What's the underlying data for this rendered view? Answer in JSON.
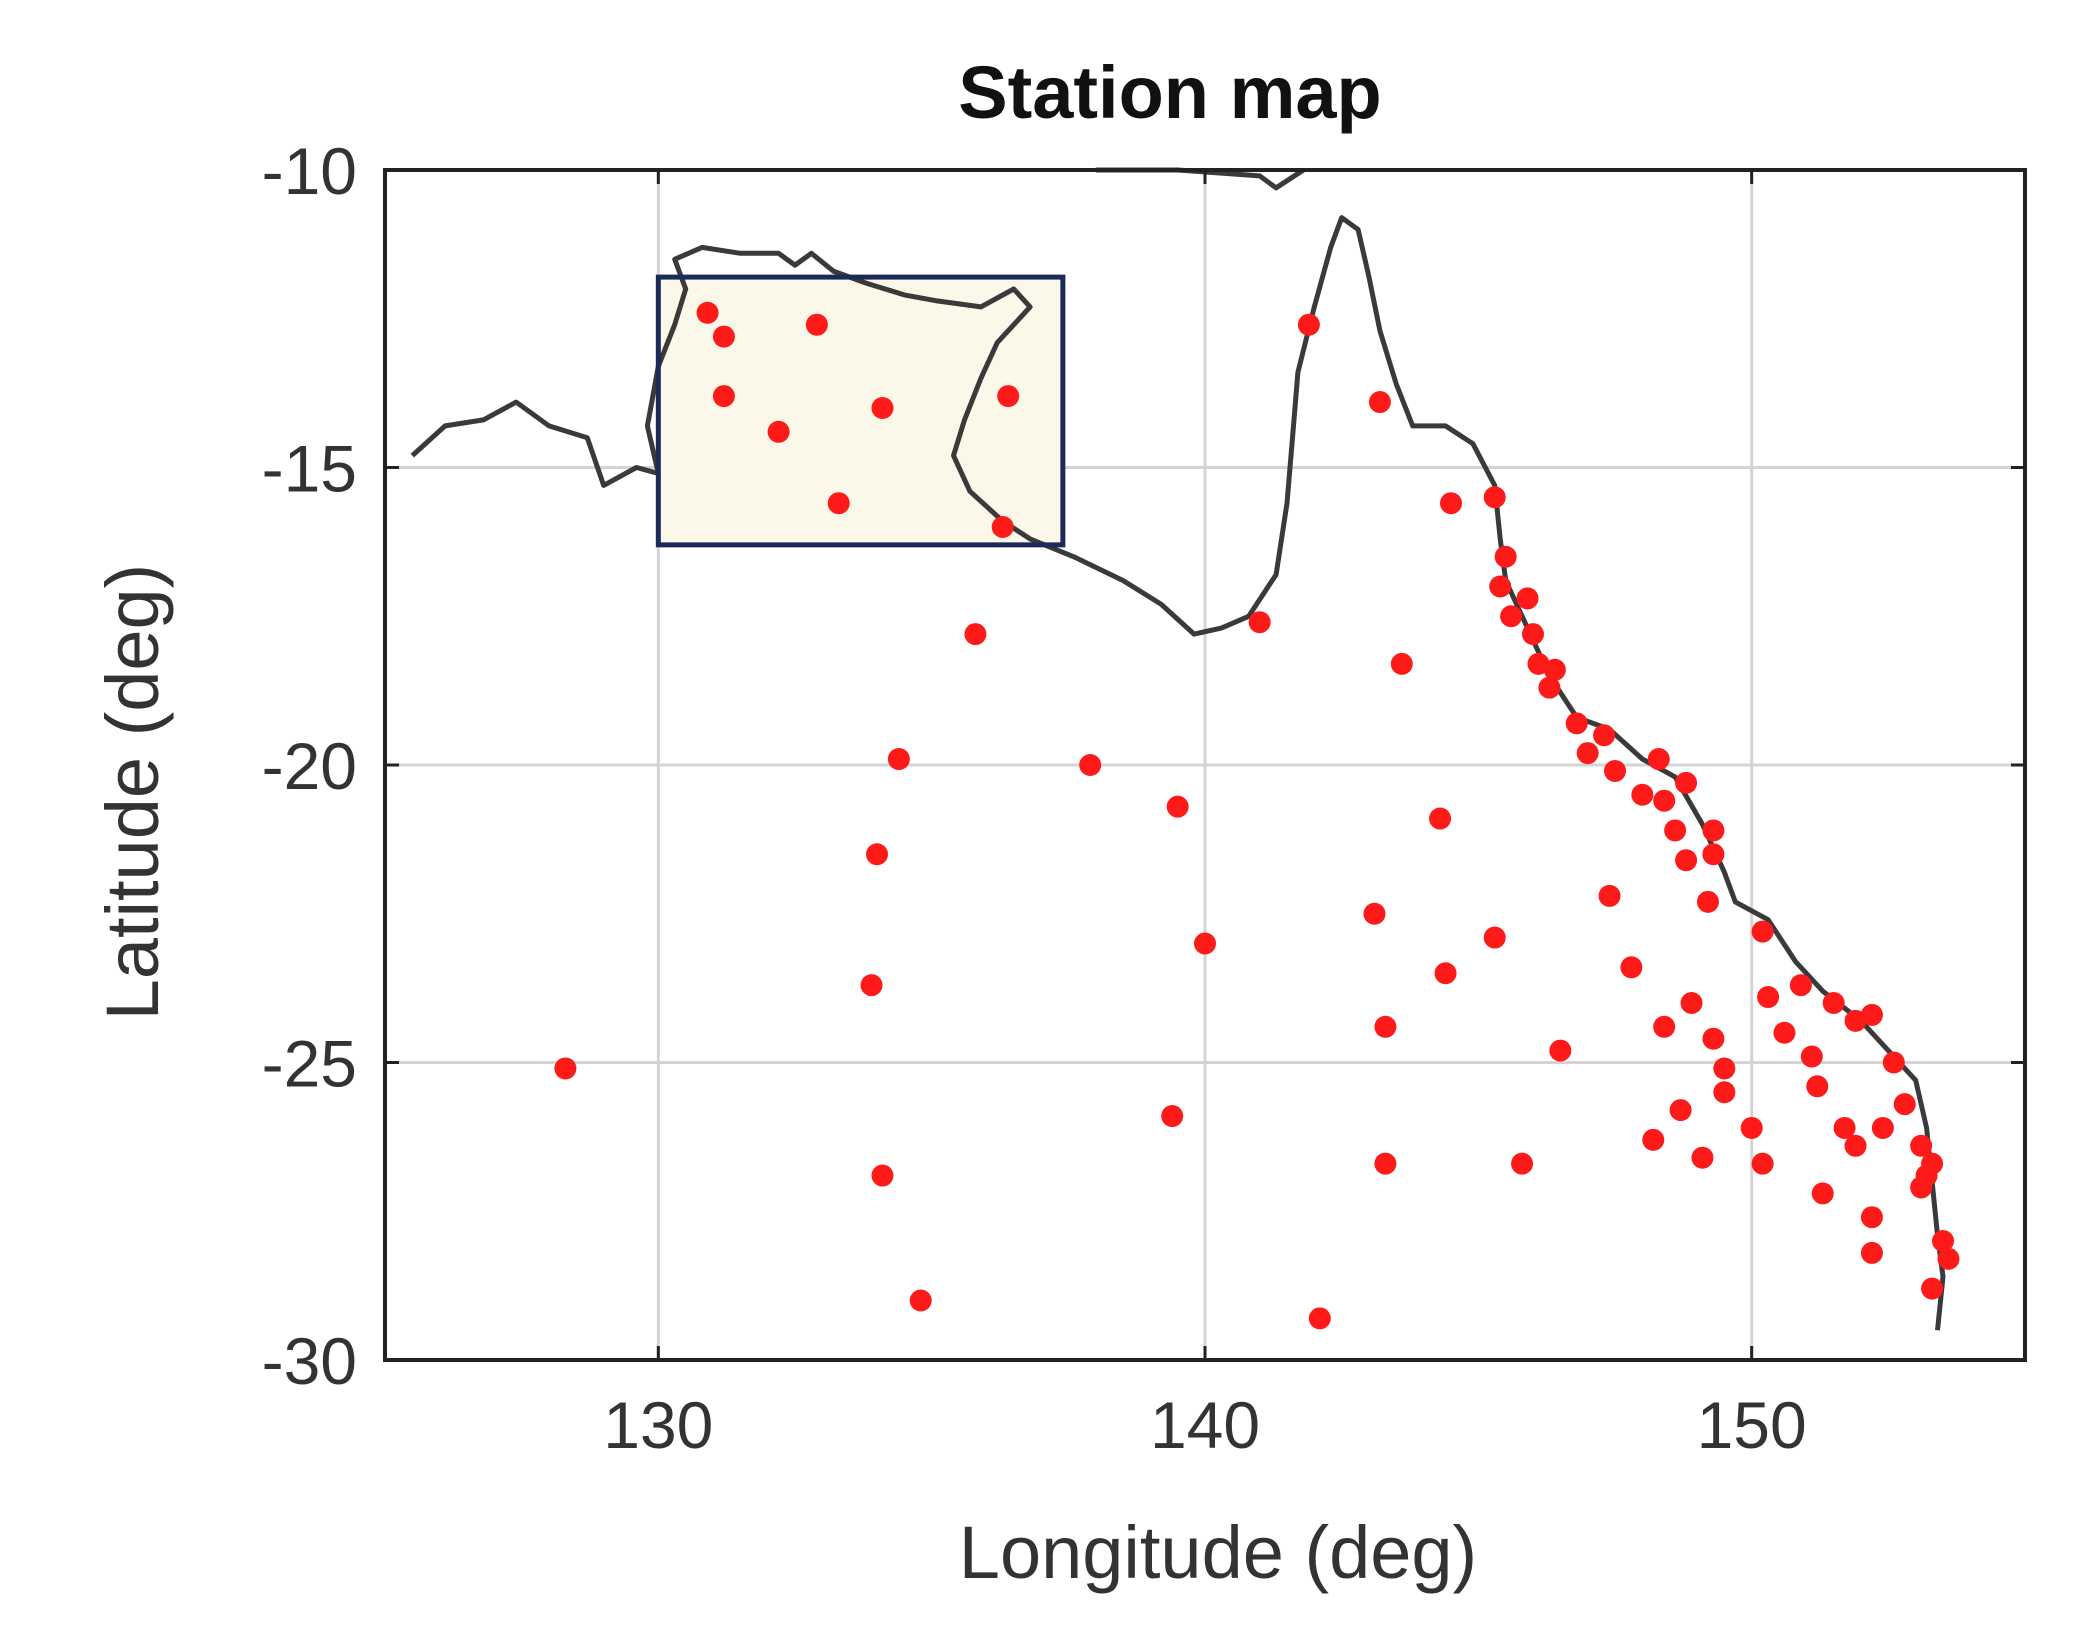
{
  "chart_data": {
    "type": "scatter",
    "title": "Station map",
    "xlabel": "Longitude (deg)",
    "ylabel": "Latitude (deg)",
    "xlim": [
      125,
      155
    ],
    "ylim": [
      -30,
      -10
    ],
    "xticks": [
      130,
      140,
      150
    ],
    "yticks": [
      -10,
      -15,
      -20,
      -25,
      -30
    ],
    "grid": true,
    "colors": {
      "station": "#ff1a1a",
      "coastline": "#3a3a3a",
      "highlight_fill": "#fbf7e9",
      "highlight_border": "#1c2a5a"
    },
    "highlight_region": {
      "lon": [
        130,
        137.4
      ],
      "lat": [
        -16.3,
        -11.8
      ]
    },
    "coastline": [
      [
        125.5,
        -14.8
      ],
      [
        126.1,
        -14.3
      ],
      [
        126.8,
        -14.2
      ],
      [
        127.4,
        -13.9
      ],
      [
        128.0,
        -14.3
      ],
      [
        128.7,
        -14.5
      ],
      [
        129.0,
        -15.3
      ],
      [
        129.6,
        -15.0
      ],
      [
        130.0,
        -15.1
      ],
      [
        129.8,
        -14.3
      ],
      [
        130.0,
        -13.3
      ],
      [
        130.3,
        -12.6
      ],
      [
        130.5,
        -12.0
      ],
      [
        130.3,
        -11.5
      ],
      [
        130.8,
        -11.3
      ],
      [
        131.5,
        -11.4
      ],
      [
        132.2,
        -11.4
      ],
      [
        132.5,
        -11.6
      ],
      [
        132.8,
        -11.4
      ],
      [
        133.2,
        -11.7
      ],
      [
        133.8,
        -11.9
      ],
      [
        134.5,
        -12.1
      ],
      [
        135.1,
        -12.2
      ],
      [
        135.9,
        -12.3
      ],
      [
        136.5,
        -12.0
      ],
      [
        136.8,
        -12.3
      ],
      [
        136.2,
        -12.9
      ],
      [
        135.9,
        -13.5
      ],
      [
        135.6,
        -14.2
      ],
      [
        135.4,
        -14.8
      ],
      [
        135.7,
        -15.4
      ],
      [
        136.3,
        -15.9
      ],
      [
        136.8,
        -16.2
      ],
      [
        137.6,
        -16.5
      ],
      [
        138.5,
        -16.9
      ],
      [
        139.2,
        -17.3
      ],
      [
        139.8,
        -17.8
      ],
      [
        140.3,
        -17.7
      ],
      [
        140.8,
        -17.5
      ],
      [
        141.3,
        -16.8
      ],
      [
        141.5,
        -15.6
      ],
      [
        141.6,
        -14.5
      ],
      [
        141.7,
        -13.4
      ],
      [
        142.0,
        -12.3
      ],
      [
        142.3,
        -11.3
      ],
      [
        142.5,
        -10.8
      ],
      [
        142.8,
        -11.0
      ],
      [
        143.0,
        -11.8
      ],
      [
        143.2,
        -12.7
      ],
      [
        143.5,
        -13.6
      ],
      [
        143.8,
        -14.3
      ],
      [
        144.4,
        -14.3
      ],
      [
        144.9,
        -14.6
      ],
      [
        145.3,
        -15.3
      ],
      [
        145.4,
        -16.2
      ],
      [
        145.5,
        -16.9
      ],
      [
        146.0,
        -17.9
      ],
      [
        146.3,
        -18.5
      ],
      [
        146.8,
        -19.2
      ],
      [
        147.4,
        -19.4
      ],
      [
        148.0,
        -19.9
      ],
      [
        148.6,
        -20.2
      ],
      [
        149.1,
        -21.0
      ],
      [
        149.5,
        -21.8
      ],
      [
        149.7,
        -22.3
      ],
      [
        150.3,
        -22.6
      ],
      [
        150.8,
        -23.3
      ],
      [
        151.3,
        -23.8
      ],
      [
        152.0,
        -24.3
      ],
      [
        152.5,
        -24.8
      ],
      [
        153.0,
        -25.3
      ],
      [
        153.2,
        -26.1
      ],
      [
        153.3,
        -27.0
      ],
      [
        153.4,
        -27.9
      ],
      [
        153.5,
        -28.6
      ],
      [
        153.4,
        -29.5
      ]
    ],
    "coastline_islands": [
      [
        [
          138.0,
          -10.0
        ],
        [
          139.5,
          -10.0
        ],
        [
          141.0,
          -10.1
        ],
        [
          141.3,
          -10.3
        ],
        [
          141.8,
          -10.0
        ]
      ]
    ],
    "stations": [
      [
        128.3,
        -25.1
      ],
      [
        130.9,
        -12.4
      ],
      [
        131.2,
        -12.8
      ],
      [
        131.2,
        -13.8
      ],
      [
        132.2,
        -14.4
      ],
      [
        132.9,
        -12.6
      ],
      [
        134.1,
        -14.0
      ],
      [
        133.3,
        -15.6
      ],
      [
        136.4,
        -13.8
      ],
      [
        136.3,
        -16.0
      ],
      [
        135.8,
        -17.8
      ],
      [
        134.4,
        -19.9
      ],
      [
        134.0,
        -21.5
      ],
      [
        133.9,
        -23.7
      ],
      [
        134.1,
        -26.9
      ],
      [
        134.8,
        -29.0
      ],
      [
        137.9,
        -20.0
      ],
      [
        139.5,
        -20.7
      ],
      [
        140.0,
        -23.0
      ],
      [
        139.4,
        -25.9
      ],
      [
        141.0,
        -17.6
      ],
      [
        141.9,
        -12.6
      ],
      [
        142.1,
        -29.3
      ],
      [
        143.2,
        -13.9
      ],
      [
        143.6,
        -18.3
      ],
      [
        143.1,
        -22.5
      ],
      [
        143.3,
        -24.4
      ],
      [
        143.3,
        -26.7
      ],
      [
        144.3,
        -20.9
      ],
      [
        144.4,
        -23.5
      ],
      [
        144.5,
        -15.6
      ],
      [
        145.3,
        -15.5
      ],
      [
        145.5,
        -16.5
      ],
      [
        145.4,
        -17.0
      ],
      [
        145.6,
        -17.5
      ],
      [
        145.9,
        -17.2
      ],
      [
        146.0,
        -17.8
      ],
      [
        146.1,
        -18.3
      ],
      [
        146.3,
        -18.7
      ],
      [
        146.4,
        -18.4
      ],
      [
        145.3,
        -22.9
      ],
      [
        145.8,
        -26.7
      ],
      [
        146.5,
        -24.8
      ],
      [
        146.8,
        -19.3
      ],
      [
        147.0,
        -19.8
      ],
      [
        147.3,
        -19.5
      ],
      [
        147.5,
        -20.1
      ],
      [
        147.4,
        -22.2
      ],
      [
        147.8,
        -23.4
      ],
      [
        148.0,
        -20.5
      ],
      [
        148.3,
        -19.9
      ],
      [
        148.4,
        -20.6
      ],
      [
        148.6,
        -21.1
      ],
      [
        148.8,
        -20.3
      ],
      [
        148.8,
        -21.6
      ],
      [
        149.2,
        -22.3
      ],
      [
        149.3,
        -21.5
      ],
      [
        149.3,
        -21.1
      ],
      [
        148.2,
        -26.3
      ],
      [
        148.4,
        -24.4
      ],
      [
        148.7,
        -25.8
      ],
      [
        148.9,
        -24.0
      ],
      [
        149.1,
        -26.6
      ],
      [
        149.3,
        -24.6
      ],
      [
        149.5,
        -25.1
      ],
      [
        149.5,
        -25.5
      ],
      [
        150.0,
        -26.1
      ],
      [
        150.2,
        -26.7
      ],
      [
        150.2,
        -22.8
      ],
      [
        150.3,
        -23.9
      ],
      [
        150.6,
        -24.5
      ],
      [
        150.9,
        -23.7
      ],
      [
        151.1,
        -24.9
      ],
      [
        151.2,
        -25.4
      ],
      [
        151.3,
        -27.2
      ],
      [
        151.5,
        -24.0
      ],
      [
        151.7,
        -26.1
      ],
      [
        151.9,
        -26.4
      ],
      [
        151.9,
        -24.3
      ],
      [
        152.2,
        -24.2
      ],
      [
        152.2,
        -27.6
      ],
      [
        152.2,
        -28.2
      ],
      [
        152.4,
        -26.1
      ],
      [
        152.6,
        -25.0
      ],
      [
        152.8,
        -25.7
      ],
      [
        153.1,
        -26.4
      ],
      [
        153.2,
        -26.9
      ],
      [
        153.3,
        -26.7
      ],
      [
        153.1,
        -27.1
      ],
      [
        153.3,
        -28.8
      ],
      [
        153.5,
        -28.0
      ],
      [
        153.6,
        -28.3
      ]
    ]
  }
}
